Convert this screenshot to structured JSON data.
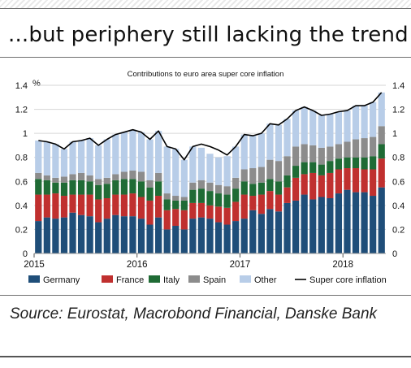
{
  "headline": "...but periphery still lacking the trend",
  "source": "Source: Eurostat, Macrobond Financial, Danske Bank",
  "chart_data": {
    "type": "bar",
    "stacked": true,
    "title": "Contributions to euro area super core inflation",
    "y_unit": "%",
    "ylim": [
      0,
      1.4
    ],
    "yticks": [
      "0",
      "0.2",
      "0.4",
      "0.6",
      "0.8",
      "1",
      "1.2",
      "1.4"
    ],
    "x_tick_labels": [
      "2015",
      "2016",
      "2017",
      "2018"
    ],
    "x_start": "2015-01",
    "grid": true,
    "legend_position": "bottom",
    "series": [
      {
        "name": "Germany",
        "color": "#1f4e79",
        "values": [
          0.27,
          0.3,
          0.29,
          0.3,
          0.34,
          0.32,
          0.31,
          0.26,
          0.29,
          0.32,
          0.31,
          0.31,
          0.29,
          0.24,
          0.3,
          0.2,
          0.23,
          0.2,
          0.29,
          0.3,
          0.29,
          0.26,
          0.24,
          0.27,
          0.29,
          0.36,
          0.33,
          0.37,
          0.35,
          0.42,
          0.44,
          0.49,
          0.45,
          0.47,
          0.46,
          0.5,
          0.53,
          0.51,
          0.51,
          0.48,
          0.55
        ]
      },
      {
        "name": "France",
        "color": "#c0302f",
        "values": [
          0.22,
          0.19,
          0.21,
          0.18,
          0.15,
          0.17,
          0.18,
          0.19,
          0.17,
          0.17,
          0.18,
          0.19,
          0.18,
          0.2,
          0.18,
          0.16,
          0.14,
          0.16,
          0.13,
          0.12,
          0.11,
          0.13,
          0.14,
          0.16,
          0.2,
          0.12,
          0.16,
          0.15,
          0.14,
          0.13,
          0.19,
          0.17,
          0.22,
          0.18,
          0.21,
          0.2,
          0.18,
          0.2,
          0.19,
          0.22,
          0.24
        ]
      },
      {
        "name": "Italy",
        "color": "#1f6b35",
        "values": [
          0.13,
          0.12,
          0.09,
          0.11,
          0.12,
          0.12,
          0.11,
          0.12,
          0.12,
          0.12,
          0.13,
          0.12,
          0.13,
          0.11,
          0.12,
          0.09,
          0.07,
          0.08,
          0.11,
          0.12,
          0.12,
          0.11,
          0.11,
          0.11,
          0.11,
          0.1,
          0.1,
          0.1,
          0.11,
          0.1,
          0.1,
          0.1,
          0.09,
          0.09,
          0.1,
          0.09,
          0.09,
          0.09,
          0.1,
          0.11,
          0.12
        ]
      },
      {
        "name": "Spain",
        "color": "#8c8c8c",
        "values": [
          0.05,
          0.04,
          0.04,
          0.05,
          0.05,
          0.06,
          0.05,
          0.05,
          0.05,
          0.05,
          0.06,
          0.07,
          0.08,
          0.06,
          0.07,
          0.05,
          0.04,
          0.03,
          0.06,
          0.07,
          0.07,
          0.07,
          0.07,
          0.09,
          0.1,
          0.13,
          0.13,
          0.16,
          0.17,
          0.16,
          0.16,
          0.15,
          0.14,
          0.14,
          0.12,
          0.12,
          0.13,
          0.15,
          0.16,
          0.16,
          0.15
        ]
      },
      {
        "name": "Other",
        "color": "#b8cde8",
        "values": [
          0.27,
          0.28,
          0.28,
          0.23,
          0.27,
          0.27,
          0.31,
          0.28,
          0.32,
          0.33,
          0.33,
          0.34,
          0.33,
          0.34,
          0.35,
          0.39,
          0.39,
          0.31,
          0.3,
          0.27,
          0.24,
          0.23,
          0.25,
          0.26,
          0.29,
          0.27,
          0.28,
          0.3,
          0.3,
          0.31,
          0.3,
          0.31,
          0.29,
          0.27,
          0.27,
          0.27,
          0.26,
          0.28,
          0.27,
          0.29,
          0.28
        ]
      }
    ],
    "line": {
      "name": "Super core inflation",
      "color": "#000000",
      "values": [
        0.94,
        0.93,
        0.91,
        0.87,
        0.93,
        0.94,
        0.96,
        0.9,
        0.95,
        0.99,
        1.01,
        1.03,
        1.01,
        0.95,
        1.02,
        0.89,
        0.87,
        0.78,
        0.89,
        0.91,
        0.89,
        0.86,
        0.82,
        0.89,
        0.99,
        0.98,
        1.0,
        1.08,
        1.07,
        1.12,
        1.19,
        1.22,
        1.19,
        1.15,
        1.16,
        1.18,
        1.19,
        1.23,
        1.23,
        1.26,
        1.34
      ]
    }
  }
}
